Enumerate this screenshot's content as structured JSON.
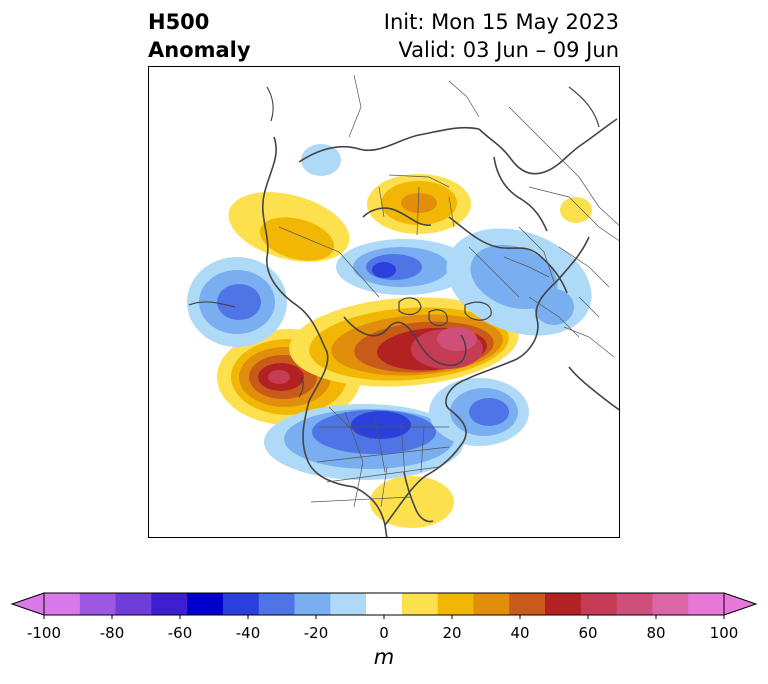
{
  "header": {
    "title_line1": "H500",
    "title_line2": "Anomaly",
    "init": "Init: Mon 15 May 2023",
    "valid": "Valid: 03 Jun – 09 Jun"
  },
  "colorbar": {
    "unit": "m",
    "ticks": [
      "-100",
      "-80",
      "-60",
      "-40",
      "-20",
      "0",
      "20",
      "40",
      "60",
      "80",
      "100"
    ],
    "levels": [
      -100,
      -90,
      -80,
      -70,
      -60,
      -50,
      -40,
      -30,
      -20,
      -10,
      10,
      20,
      30,
      40,
      50,
      60,
      70,
      80,
      90,
      100
    ],
    "colors": [
      "#d978e8",
      "#9d57e0",
      "#6f3dd8",
      "#3d1fd0",
      "#0000cc",
      "#2a3fdc",
      "#4f74e6",
      "#79aef0",
      "#aedaf8",
      "#ffffff",
      "#fde04e",
      "#f2b705",
      "#e08e0b",
      "#c95a1a",
      "#b22222",
      "#c43c56",
      "#cf4e7a",
      "#db66a6",
      "#e878d8"
    ],
    "under_color": "#d978e8",
    "over_color": "#e878d8"
  },
  "map": {
    "projection": "north-polar-stereographic",
    "field": "500 hPa geopotential height anomaly",
    "features": [
      {
        "name": "positive-anomaly-eastern-canada",
        "value": 80
      },
      {
        "name": "positive-anomaly-northeast-pacific",
        "value": 60
      },
      {
        "name": "positive-anomaly-central-siberia",
        "value": 30
      },
      {
        "name": "positive-anomaly-yukon-alaska",
        "value": 20
      },
      {
        "name": "positive-anomaly-florida",
        "value": 20
      },
      {
        "name": "negative-anomaly-central-us",
        "value": -60
      },
      {
        "name": "negative-anomaly-western-atlantic",
        "value": -40
      },
      {
        "name": "negative-anomaly-arctic-ocean",
        "value": -60
      },
      {
        "name": "negative-anomaly-bering-sea",
        "value": -40
      },
      {
        "name": "negative-anomaly-northern-europe",
        "value": -30
      },
      {
        "name": "negative-anomaly-east-asia",
        "value": -20
      }
    ]
  }
}
